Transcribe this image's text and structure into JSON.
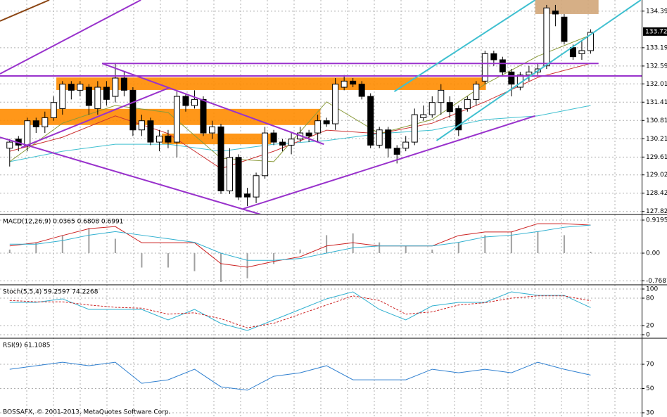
{
  "footer": "BOSSAFX, © 2001-2013, MetaQuotes Software Corp.",
  "chart_data": [
    {
      "type": "candlestick",
      "xlim": [
        -1.1,
        71.8
      ],
      "ylim": [
        127.75,
        134.76
      ],
      "yticks": [
        134.395,
        133.195,
        132.595,
        {
          "value": 132.01,
          "label": "132.010"
        },
        {
          "value": 131.41,
          "label": "131.410"
        },
        {
          "value": 130.81,
          "label": "130.810"
        },
        {
          "value": 130.21,
          "label": "130.210"
        },
        {
          "value": 129.61,
          "label": "129.610"
        },
        129.025,
        128.425,
        127.825
      ],
      "last_price": 133.725,
      "grid": true,
      "up_color": "#ffffff",
      "down_color": "#000000",
      "open": [
        129.9,
        130.2,
        130.0,
        130.8,
        130.6,
        130.9,
        131.2,
        132.0,
        131.8,
        131.9,
        131.2,
        131.9,
        131.6,
        132.2,
        131.8,
        130.5,
        130.8,
        130.1,
        130.3,
        130.1,
        131.6,
        131.3,
        131.5,
        130.4,
        130.6,
        128.5,
        129.6,
        128.4,
        128.3,
        129.0,
        130.4,
        130.1,
        130.0,
        130.2,
        130.4,
        130.4,
        130.8,
        130.7,
        131.9,
        132.1,
        132.0,
        131.6,
        130.0,
        130.5,
        129.9,
        129.9,
        130.1,
        130.9,
        131.0,
        131.4,
        131.4,
        131.2,
        131.2,
        131.5,
        132.1,
        133.0,
        132.8,
        132.4,
        131.9,
        132.3,
        132.4,
        132.6,
        134.4,
        134.2,
        133.2,
        133.0,
        133.1
      ],
      "high": [
        130.2,
        130.3,
        130.9,
        130.9,
        131.1,
        131.6,
        132.1,
        132.1,
        132.1,
        132.0,
        132.1,
        132.1,
        132.7,
        132.4,
        131.9,
        131.0,
        130.9,
        130.5,
        130.5,
        131.8,
        131.7,
        131.8,
        131.6,
        130.8,
        130.7,
        129.9,
        129.7,
        128.6,
        129.1,
        130.6,
        130.5,
        130.2,
        130.4,
        130.6,
        130.5,
        131.0,
        130.9,
        132.2,
        132.3,
        132.2,
        132.1,
        131.7,
        130.6,
        130.6,
        130.0,
        130.3,
        131.2,
        131.3,
        131.6,
        132.0,
        131.6,
        131.3,
        131.6,
        132.1,
        133.1,
        133.1,
        132.9,
        132.5,
        132.4,
        132.6,
        132.7,
        134.6,
        134.6,
        134.3,
        133.3,
        133.4,
        133.8
      ],
      "low": [
        129.3,
        129.8,
        129.8,
        130.4,
        130.4,
        130.8,
        131.0,
        131.5,
        131.6,
        131.0,
        131.0,
        131.3,
        131.4,
        131.6,
        130.3,
        130.3,
        130.0,
        129.8,
        129.9,
        129.6,
        131.1,
        131.2,
        130.3,
        130.2,
        128.4,
        128.4,
        128.2,
        128.0,
        128.1,
        128.9,
        130.0,
        129.8,
        129.7,
        130.1,
        130.1,
        130.1,
        130.6,
        130.5,
        131.8,
        131.9,
        131.5,
        129.9,
        129.9,
        129.6,
        129.4,
        129.8,
        130.0,
        130.8,
        130.9,
        131.0,
        130.9,
        130.3,
        131.1,
        131.3,
        132.0,
        132.6,
        132.3,
        131.6,
        131.8,
        132.1,
        132.3,
        132.5,
        133.9,
        133.3,
        132.8,
        132.8,
        133.0
      ],
      "close": [
        130.1,
        130.0,
        130.8,
        130.6,
        130.9,
        131.4,
        132.0,
        131.8,
        132.0,
        131.3,
        131.9,
        131.5,
        132.2,
        131.8,
        130.5,
        130.8,
        130.1,
        130.3,
        130.1,
        131.6,
        131.3,
        131.5,
        130.4,
        130.6,
        128.5,
        129.6,
        128.3,
        128.3,
        129.0,
        130.4,
        130.1,
        130.0,
        130.2,
        130.4,
        130.3,
        130.8,
        130.7,
        132.0,
        132.1,
        132.0,
        131.6,
        130.0,
        130.5,
        129.9,
        129.7,
        130.1,
        131.0,
        131.0,
        131.4,
        131.8,
        131.1,
        130.5,
        131.5,
        132.0,
        133.0,
        132.8,
        132.4,
        132.0,
        132.3,
        132.4,
        132.5,
        134.5,
        134.3,
        133.4,
        132.9,
        133.1,
        133.7
      ],
      "zones": [
        {
          "x": [
            5.3,
            54.1
          ],
          "y": [
            132.22,
            131.81
          ],
          "color": "#ff8c00"
        },
        {
          "x": [
            -1.1,
            35.3
          ],
          "y": [
            131.19,
            130.66
          ],
          "color": "#ff8c00"
        },
        {
          "x": [
            17.3,
            29.7
          ],
          "y": [
            130.38,
            130.03
          ],
          "color": "#ff8c00"
        },
        {
          "x": [
            59.7,
            66.9
          ],
          "y": [
            134.76,
            134.3
          ],
          "color": "#d2a679"
        }
      ],
      "lines": [
        {
          "x": [
            -1.1,
            14.9
          ],
          "y": [
            132.34,
            134.76
          ],
          "color": "#9932cc"
        },
        {
          "x": [
            -1.1,
            71.8
          ],
          "y": [
            132.27,
            132.27
          ],
          "color": "#9932cc"
        },
        {
          "x": [
            -1.1,
            28.5
          ],
          "y": [
            130.26,
            127.73
          ],
          "color": "#9932cc"
        },
        {
          "x": [
            10.5,
            35.7
          ],
          "y": [
            132.68,
            130.03
          ],
          "color": "#9932cc"
        },
        {
          "x": [
            10.5,
            66.9
          ],
          "y": [
            132.68,
            132.68
          ],
          "color": "#9932cc"
        },
        {
          "x": [
            26.5,
            59.7
          ],
          "y": [
            127.91,
            130.96
          ],
          "color": "#9932cc"
        },
        {
          "x": [
            1.3,
            18.1
          ],
          "y": [
            129.92,
            131.88
          ],
          "color": "#9932cc"
        },
        {
          "x": [
            -1.1,
            4.5
          ],
          "y": [
            134.07,
            134.76
          ],
          "color": "#8b4513"
        },
        {
          "x": [
            43.7,
            59.7
          ],
          "y": [
            131.76,
            134.76
          ],
          "color": "#40c0d0"
        },
        {
          "x": [
            48.5,
            71.7
          ],
          "y": [
            130.15,
            134.76
          ],
          "color": "#40c0d0"
        }
      ],
      "series": [
        {
          "color": "#40c0d0",
          "x": [
            0,
            6,
            12,
            18,
            24,
            30,
            36,
            42,
            48,
            54,
            60,
            66
          ],
          "values": [
            129.46,
            129.8,
            130.03,
            130.03,
            129.8,
            130.03,
            130.15,
            130.38,
            130.49,
            130.84,
            130.96,
            131.3
          ]
        },
        {
          "color": "#cc3333",
          "x": [
            0,
            6,
            12,
            18,
            24,
            30,
            36,
            42,
            48,
            54,
            60,
            66
          ],
          "values": [
            129.8,
            130.26,
            130.96,
            130.38,
            129.23,
            129.8,
            130.49,
            130.38,
            130.72,
            131.42,
            132.22,
            132.68
          ]
        },
        {
          "color": "#8a9a3a",
          "x": [
            0,
            6,
            12,
            18,
            24,
            30,
            36,
            42,
            48,
            54,
            60,
            66
          ],
          "values": [
            129.46,
            130.72,
            131.3,
            131.07,
            129.57,
            129.46,
            131.42,
            130.38,
            130.84,
            132.0,
            132.92,
            133.61
          ]
        }
      ]
    },
    {
      "type": "macd",
      "title": "MACD(12,26,9) 0.0365 0.6808 0.6991",
      "xlim": [
        -1.1,
        71.8
      ],
      "ylim": [
        -0.86,
        1.056
      ],
      "yticks": [
        0.9195,
        {
          "value": 0,
          "label": "0.00"
        },
        -0.7687
      ],
      "x": [
        0,
        3,
        6,
        9,
        12,
        15,
        18,
        21,
        24,
        27,
        30,
        33,
        36,
        39,
        42,
        45,
        48,
        51,
        54,
        57,
        60,
        63,
        66
      ],
      "values": [
        0.1,
        0.3,
        0.5,
        0.7,
        0.4,
        -0.4,
        -0.4,
        -0.5,
        -0.8,
        -0.7,
        -0.3,
        0.1,
        0.5,
        0.55,
        0.3,
        0.2,
        0.1,
        0.3,
        0.5,
        0.6,
        0.6,
        0.5,
        0.04
      ],
      "color": "#a0a0a0",
      "series": [
        {
          "color": "#cc2222",
          "x": [
            0,
            3,
            6,
            9,
            12,
            15,
            18,
            21,
            24,
            27,
            30,
            33,
            36,
            39,
            42,
            45,
            48,
            51,
            54,
            57,
            60,
            63,
            66
          ],
          "values": [
            0.2,
            0.29,
            0.49,
            0.68,
            0.74,
            0.29,
            0.29,
            0.29,
            -0.29,
            -0.39,
            -0.23,
            -0.1,
            0.2,
            0.29,
            0.2,
            0.2,
            0.2,
            0.49,
            0.59,
            0.59,
            0.82,
            0.82,
            0.78
          ]
        },
        {
          "color": "#30b0d0",
          "x": [
            0,
            3,
            6,
            9,
            12,
            15,
            18,
            21,
            24,
            27,
            30,
            33,
            36,
            39,
            42,
            45,
            48,
            51,
            54,
            57,
            60,
            63,
            66
          ],
          "values": [
            0.25,
            0.25,
            0.35,
            0.5,
            0.6,
            0.5,
            0.4,
            0.3,
            0.0,
            -0.2,
            -0.2,
            -0.15,
            0.0,
            0.15,
            0.2,
            0.2,
            0.2,
            0.3,
            0.45,
            0.5,
            0.6,
            0.72,
            0.78
          ]
        }
      ]
    },
    {
      "type": "oscillator",
      "title": "Stoch(5,5,4) 59.2597 74.2268",
      "xlim": [
        -1.1,
        71.8
      ],
      "ylim": [
        -6.2,
        107.7
      ],
      "yticks": [
        100,
        80,
        20,
        0
      ],
      "series": [
        {
          "color": "#30b0d0",
          "x": [
            0,
            3,
            6,
            9,
            12,
            15,
            18,
            21,
            24,
            27,
            30,
            33,
            36,
            39,
            42,
            45,
            48,
            51,
            54,
            57,
            60,
            63,
            66
          ],
          "values": [
            70.8,
            70.8,
            78.5,
            55.4,
            55.4,
            55.4,
            32.3,
            55.4,
            24.6,
            9.2,
            32.3,
            55.4,
            78.5,
            93.8,
            55.4,
            32.3,
            63,
            70.8,
            70.8,
            93.8,
            86,
            86,
            59.3
          ]
        },
        {
          "color": "#cc2222",
          "style": "dashed",
          "x": [
            0,
            3,
            6,
            9,
            12,
            15,
            18,
            21,
            24,
            27,
            30,
            33,
            36,
            39,
            42,
            45,
            48,
            51,
            54,
            57,
            60,
            63,
            66
          ],
          "values": [
            75,
            72,
            72,
            65,
            60,
            58,
            45,
            48,
            35,
            15,
            25,
            45,
            65,
            85,
            75,
            45,
            50,
            65,
            70,
            80,
            85,
            85,
            74.2
          ]
        }
      ]
    },
    {
      "type": "oscillator",
      "title": "RSI(9) 61.1085",
      "xlim": [
        -1.1,
        71.8
      ],
      "ylim": [
        26.5,
        90.9
      ],
      "yticks": [
        70,
        50,
        30
      ],
      "series": [
        {
          "color": "#3080d0",
          "x": [
            0,
            3,
            6,
            9,
            12,
            15,
            18,
            21,
            24,
            27,
            30,
            33,
            36,
            39,
            42,
            45,
            48,
            51,
            54,
            57,
            60,
            63,
            66
          ],
          "values": [
            65.9,
            68.8,
            71.7,
            68.8,
            71.7,
            54.3,
            57.2,
            65.9,
            51.4,
            48.6,
            60.1,
            63,
            68.8,
            57.2,
            57.2,
            57.2,
            65.9,
            63,
            65.9,
            63,
            71.7,
            65.9,
            61.1
          ]
        }
      ]
    }
  ]
}
